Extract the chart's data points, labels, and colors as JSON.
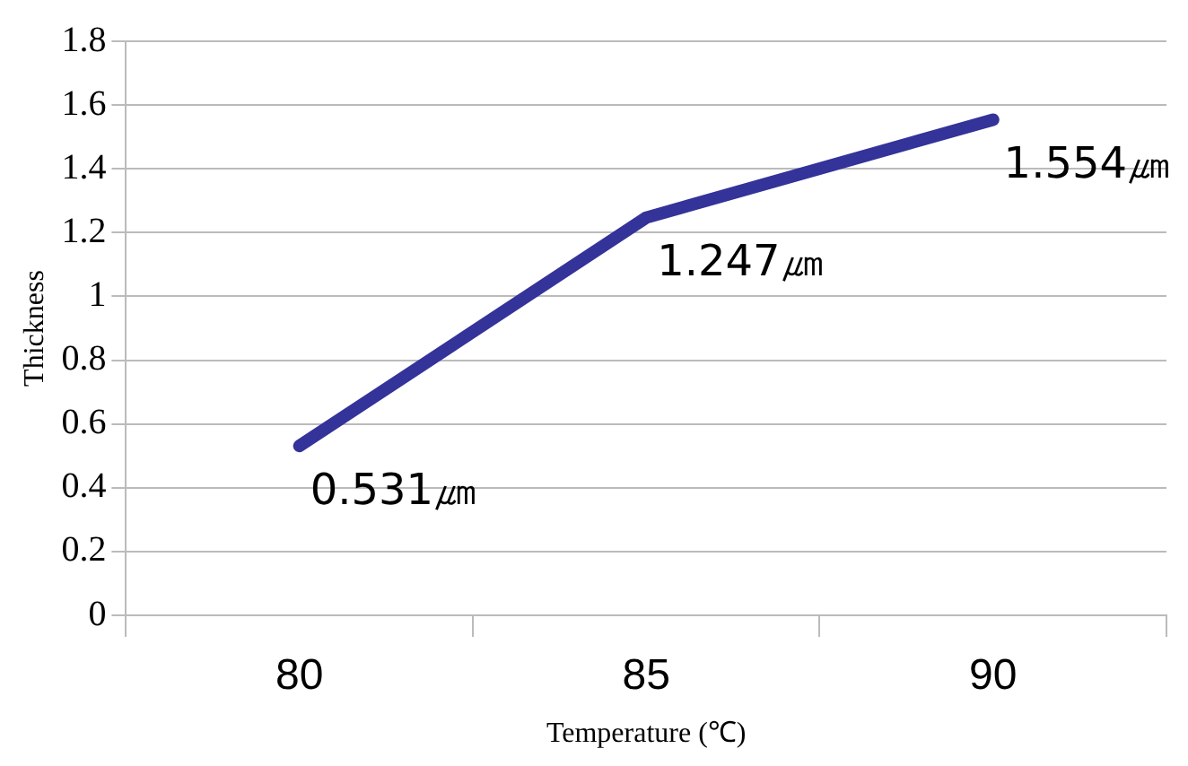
{
  "chart_data": {
    "type": "line",
    "xlabel": "Temperature (℃)",
    "ylabel": "Thickness",
    "categories": [
      "80",
      "85",
      "90"
    ],
    "series": [
      {
        "color": "#333399",
        "values": [
          0.531,
          1.247,
          1.554
        ],
        "value_labels": [
          "0.531㎛",
          "1.247㎛",
          "1.554㎛"
        ]
      }
    ],
    "ylim": [
      0,
      1.8
    ],
    "yticks": [
      0,
      0.2,
      0.4,
      0.6,
      0.8,
      1,
      1.2,
      1.4,
      1.6,
      1.8
    ],
    "grid": "y",
    "legend": false,
    "marker": "none",
    "line_style": "solid"
  }
}
